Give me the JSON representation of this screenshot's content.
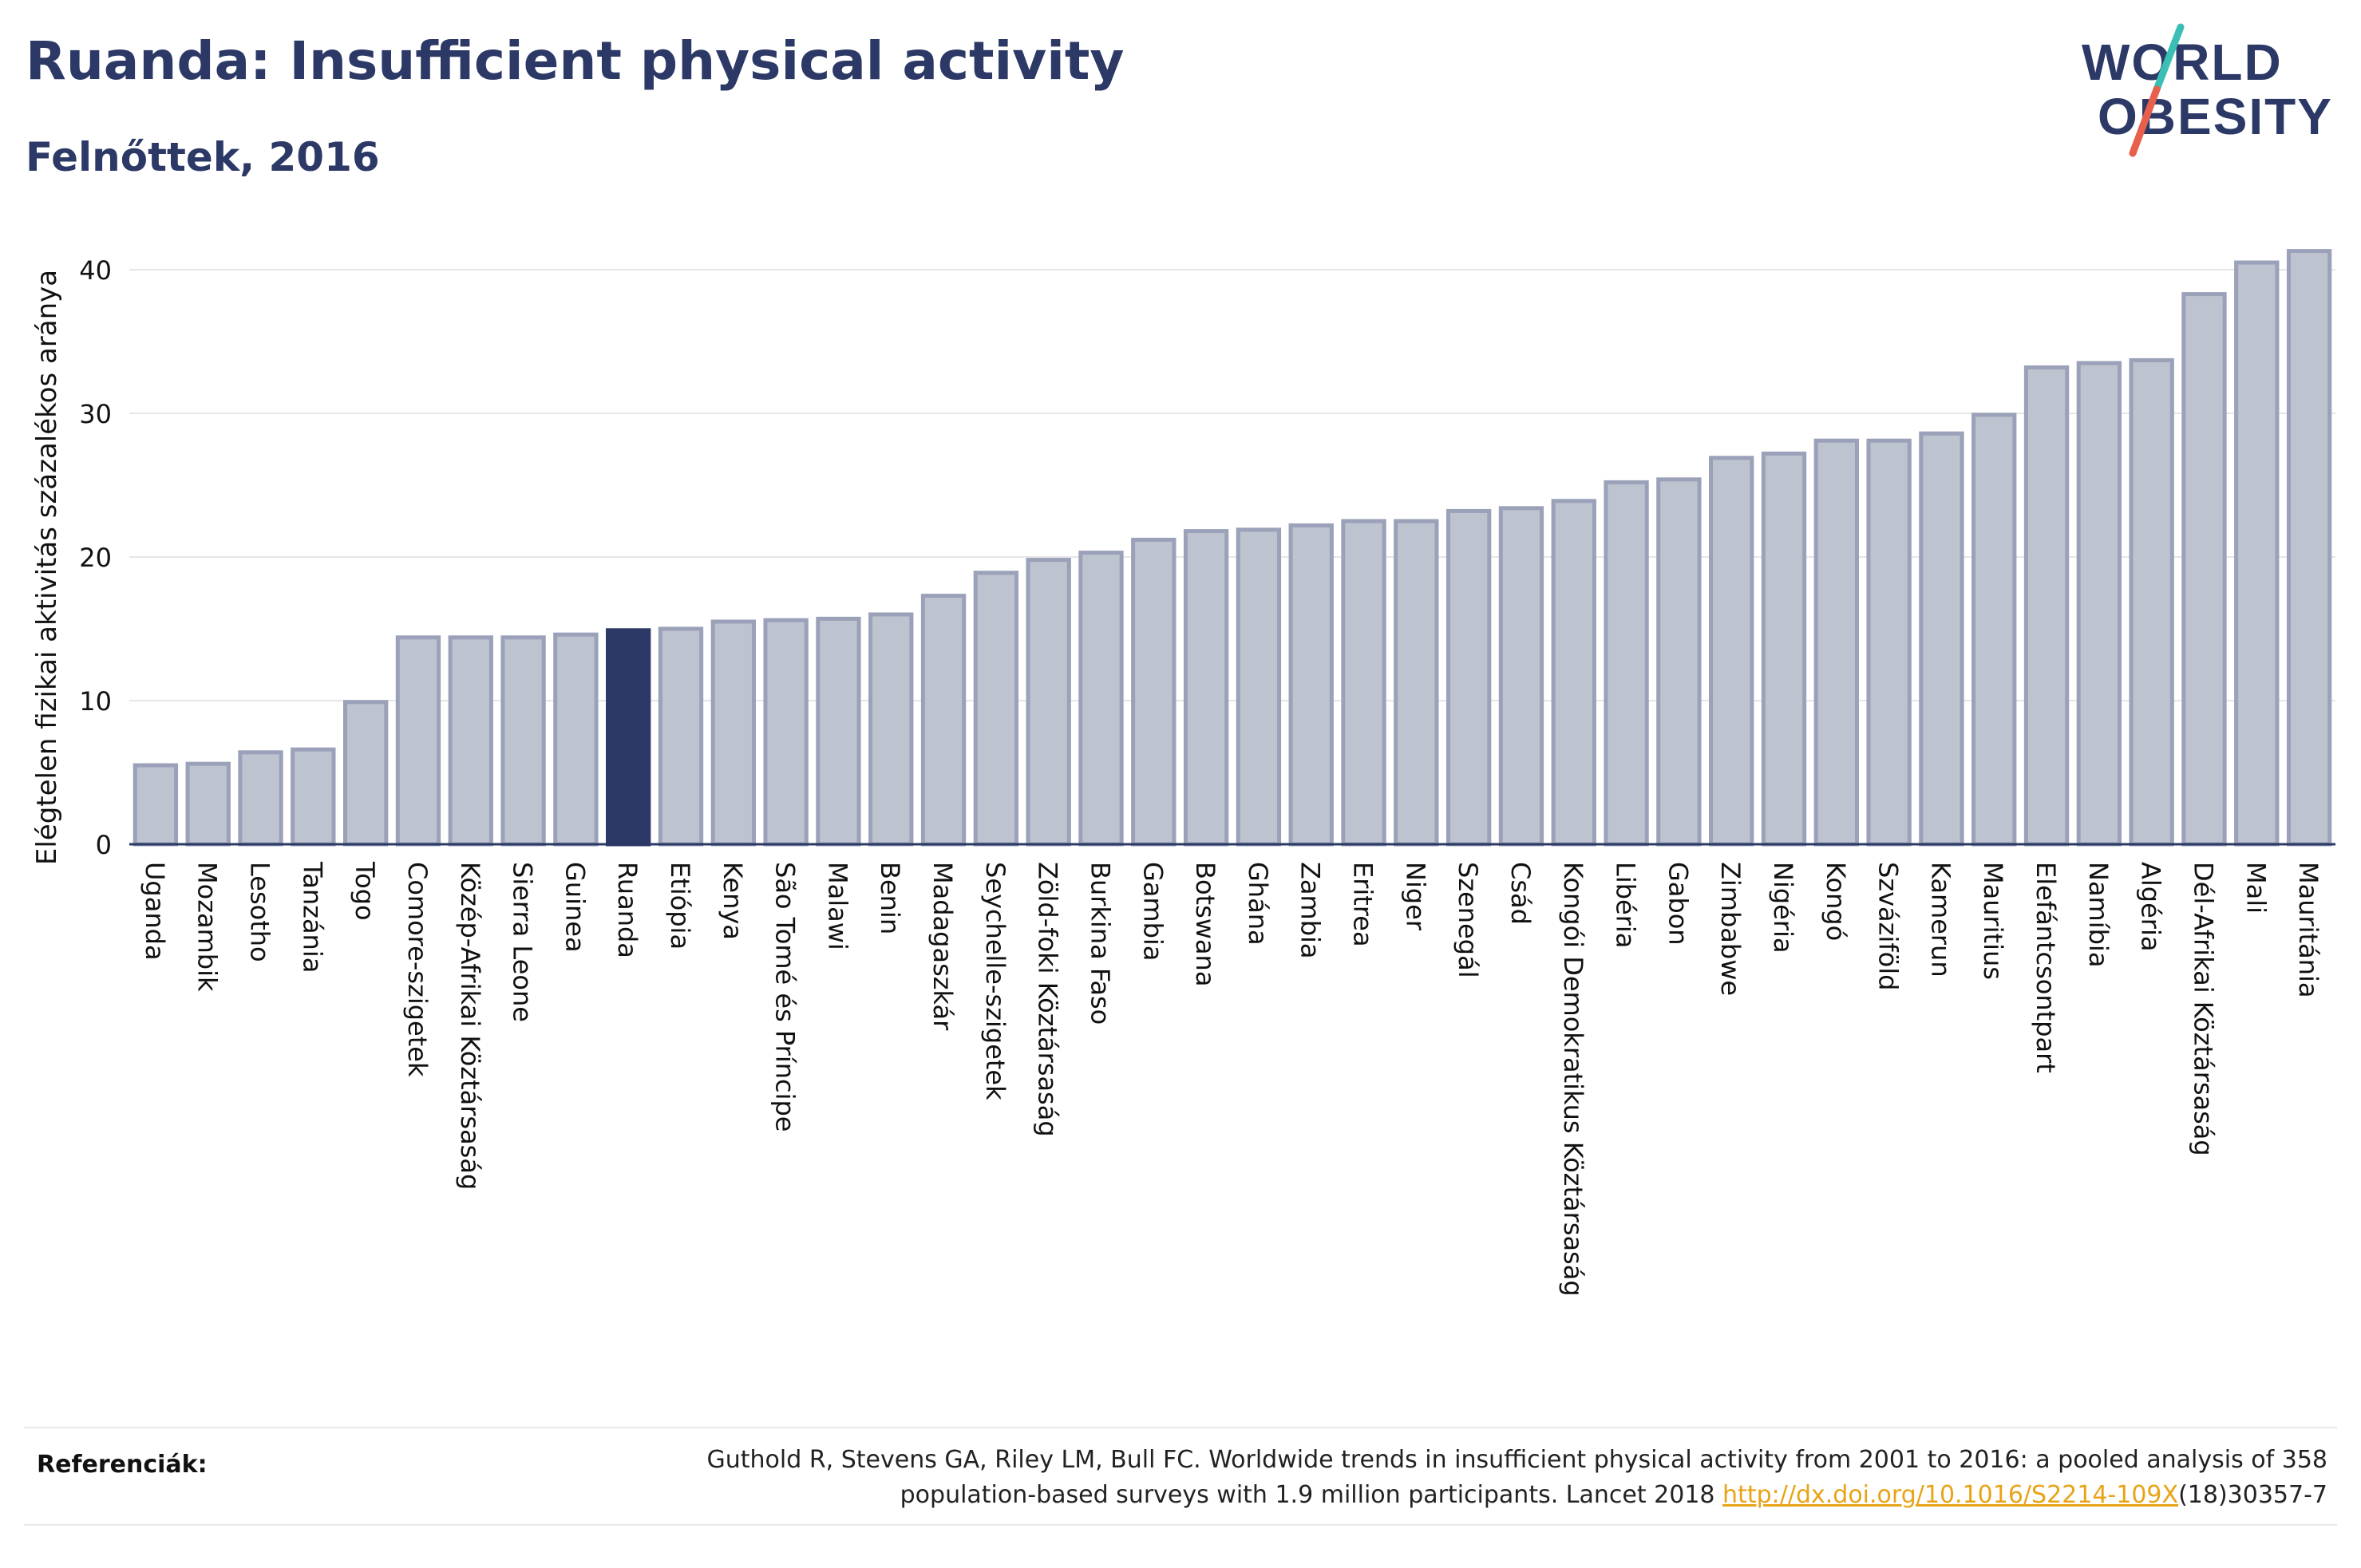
{
  "header": {
    "title": "Ruanda: Insufficient physical activity",
    "subtitle": "Felnőttek, 2016"
  },
  "logo": {
    "line1": "WORLD",
    "line2": "OBESITY",
    "colors": {
      "text": "#2c3966",
      "slash_top": "#3bbfb4",
      "slash_bottom": "#e8604c"
    }
  },
  "chart_data": {
    "type": "bar",
    "ylabel": "Elégtelen fizikai aktivitás százalékos aránya",
    "xlabel": "",
    "ylim": [
      0,
      43
    ],
    "yticks": [
      0,
      10,
      20,
      30,
      40
    ],
    "grid": true,
    "highlight": "Ruanda",
    "colors": {
      "bar": "#bec3d0",
      "bar_edge": "#9aa1b8",
      "highlight": "#2c3966",
      "grid": "#e6e6e6",
      "axis": "#2c3966"
    },
    "categories": [
      "Uganda",
      "Mozambik",
      "Lesotho",
      "Tanzánia",
      "Togo",
      "Comore-szigetek",
      "Közép-Afrikai Köztársaság",
      "Sierra Leone",
      "Guinea",
      "Ruanda",
      "Etiópia",
      "Kenya",
      "São Tomé és Príncipe",
      "Malawi",
      "Benin",
      "Madagaszkár",
      "Seychelle-szigetek",
      "Zöld-foki Köztársaság",
      "Burkina Faso",
      "Gambia",
      "Botswana",
      "Ghána",
      "Zambia",
      "Eritrea",
      "Niger",
      "Szenegál",
      "Csád",
      "Kongói Demokratikus Köztársaság",
      "Libéria",
      "Gabon",
      "Zimbabwe",
      "Nigéria",
      "Kongó",
      "Szváziföld",
      "Kamerun",
      "Mauritius",
      "Elefántcsontpart",
      "Namíbia",
      "Algéria",
      "Dél-Afrikai Köztársaság",
      "Mali",
      "Mauritánia"
    ],
    "values": [
      5.5,
      5.6,
      6.4,
      6.6,
      9.9,
      14.4,
      14.4,
      14.4,
      14.6,
      14.9,
      15.0,
      15.5,
      15.6,
      15.7,
      16.0,
      17.3,
      18.9,
      19.8,
      20.3,
      21.2,
      21.8,
      21.9,
      22.2,
      22.5,
      22.5,
      23.2,
      23.4,
      23.9,
      25.2,
      25.4,
      26.9,
      27.2,
      28.1,
      28.1,
      28.6,
      29.9,
      33.2,
      33.5,
      33.7,
      38.3,
      40.5,
      41.3
    ]
  },
  "references": {
    "label": "Referenciák:",
    "text1": "Guthold R, Stevens GA, Riley LM, Bull FC. Worldwide trends in insufficient physical activity from 2001 to 2016: a pooled analysis of 358",
    "text2": "population-based surveys with 1.9 million participants. Lancet 2018",
    "link": "http://dx.doi.org/10.1016/S2214-109X",
    "suffix": "(18)30357-7"
  }
}
